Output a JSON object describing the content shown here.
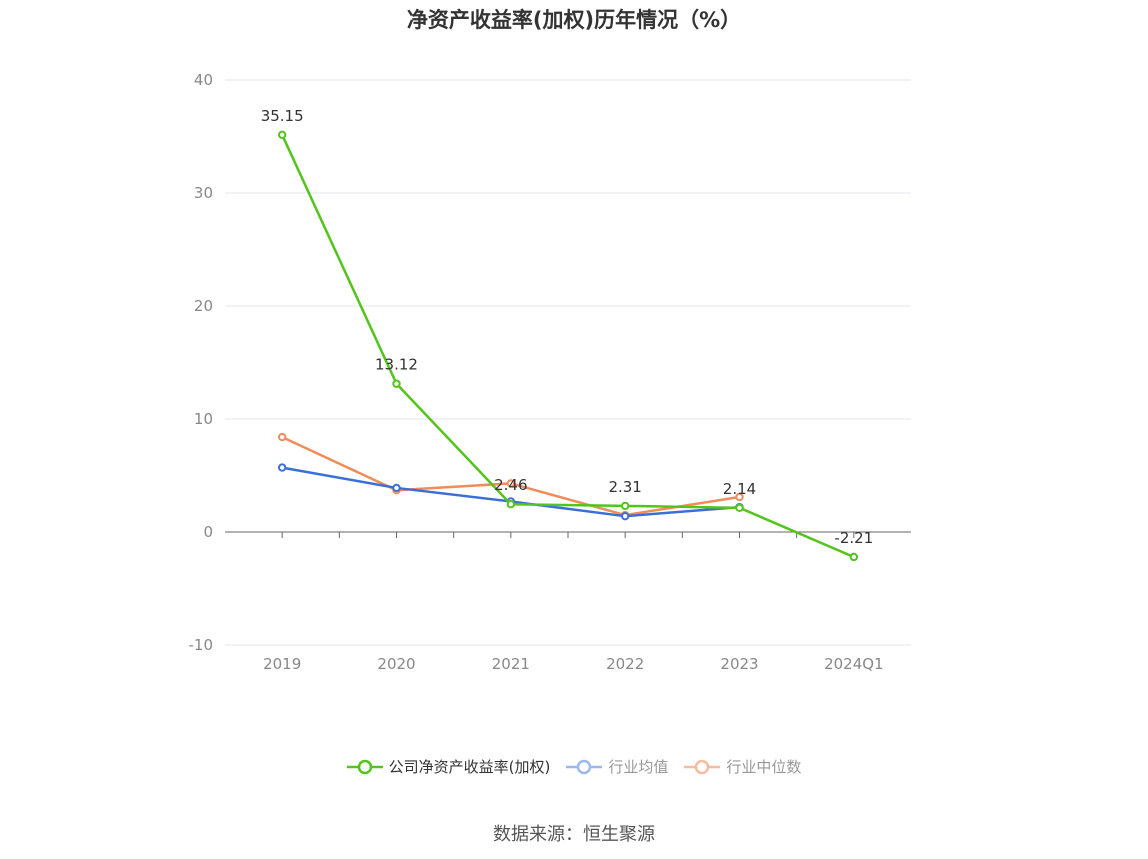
{
  "chart_data": {
    "type": "line",
    "title": "净资产收益率(加权)历年情况（%）",
    "categories": [
      "2019",
      "2020",
      "2021",
      "2022",
      "2023",
      "2024Q1"
    ],
    "ylim": [
      -10,
      40
    ],
    "yticks": [
      -10,
      0,
      10,
      20,
      30,
      40
    ],
    "grid": true,
    "legend_position": "bottom",
    "series": [
      {
        "name": "公司净资产收益率(加权)",
        "color": "#52c41a",
        "values": [
          35.15,
          13.12,
          2.46,
          2.31,
          2.14,
          -2.21
        ],
        "labels": [
          "35.15",
          "13.12",
          "2.46",
          "2.31",
          "2.14",
          "-2.21"
        ]
      },
      {
        "name": "行业均值",
        "color": "#3a6fd8",
        "values": [
          5.7,
          3.9,
          2.7,
          1.4,
          2.2,
          null
        ]
      },
      {
        "name": "行业中位数",
        "color": "#f08c5a",
        "values": [
          8.4,
          3.7,
          4.3,
          1.5,
          3.1,
          null
        ]
      }
    ]
  },
  "source": "数据来源：恒生聚源"
}
